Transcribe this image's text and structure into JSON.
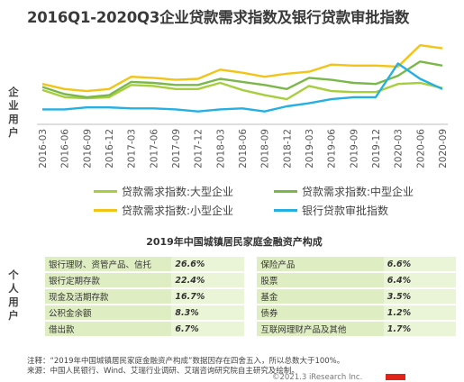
{
  "chart_data": {
    "type": "line",
    "title": "2016Q1-2020Q3企业贷款需求指数及银行贷款审批指数",
    "ylabel": "企业用户",
    "categories": [
      "2016-03",
      "2016-06",
      "2016-09",
      "2016-12",
      "2017-03",
      "2017-06",
      "2017-09",
      "2017-12",
      "2018-03",
      "2018-06",
      "2018-09",
      "2018-12",
      "2019-03",
      "2019-06",
      "2019-09",
      "2019-12",
      "2020-03",
      "2020-06",
      "2020-09"
    ],
    "series": [
      {
        "name": "贷款需求指数:大型企业",
        "color": "#a6cf3b",
        "values": [
          60.5,
          57,
          56.5,
          57,
          63,
          62.5,
          61,
          61,
          64,
          60.5,
          58,
          56,
          62.5,
          60,
          59.5,
          59.5,
          63.5,
          64,
          61.5
        ]
      },
      {
        "name": "贷款需求指数:中型企业",
        "color": "#7ab848",
        "values": [
          62,
          58.5,
          57,
          58,
          64.5,
          64,
          63,
          63,
          66,
          64.5,
          63,
          61,
          66.5,
          65.5,
          64,
          63.5,
          67.5,
          74.5,
          72.5
        ]
      },
      {
        "name": "贷款需求指数:小型企业",
        "color": "#f2c417",
        "values": [
          63.5,
          61,
          60,
          61,
          67,
          66.5,
          65.5,
          66,
          70.5,
          69,
          67,
          68.5,
          69.5,
          73,
          72.5,
          72.5,
          72,
          82.5,
          81
        ]
      },
      {
        "name": "银行贷款审批指数",
        "color": "#25b0e4",
        "values": [
          51,
          51,
          52,
          52,
          51.5,
          51.5,
          51,
          50,
          51,
          51.5,
          50,
          52.5,
          54,
          56,
          57,
          57,
          73.5,
          66,
          61
        ]
      }
    ],
    "ylim": [
      45,
      87
    ],
    "grid": false,
    "legend": "bottom"
  },
  "side_labels": {
    "top": "企业用户",
    "bottom": "个人用户"
  },
  "assets_table": {
    "title": "2019年中国城镇居民家庭金融资产构成",
    "rows": [
      {
        "a_label": "银行理财、资管产品、信托",
        "a_value": "26.6%",
        "b_label": "保险产品",
        "b_value": "6.6%"
      },
      {
        "a_label": "银行定期存款",
        "a_value": "22.4%",
        "b_label": "股票",
        "b_value": "6.4%"
      },
      {
        "a_label": "现金及活期存款",
        "a_value": "16.7%",
        "b_label": "基金",
        "b_value": "3.5%"
      },
      {
        "a_label": "公积金余额",
        "a_value": "8.3%",
        "b_label": "债券",
        "b_value": "1.2%"
      },
      {
        "a_label": "借出款",
        "a_value": "6.7%",
        "b_label": "互联网理财产品及其他",
        "b_value": "1.7%"
      }
    ]
  },
  "notes": {
    "note": "注释：“2019年中国城镇居民家庭金融资产构成”数据因存在四舍五入，所以总数大于100%。",
    "source": "来源：中国人民银行、Wind、艾瑞行业调研、艾瑞咨询研究院自主研究及绘制。",
    "brand": "©2021.3 iResearch Inc."
  }
}
